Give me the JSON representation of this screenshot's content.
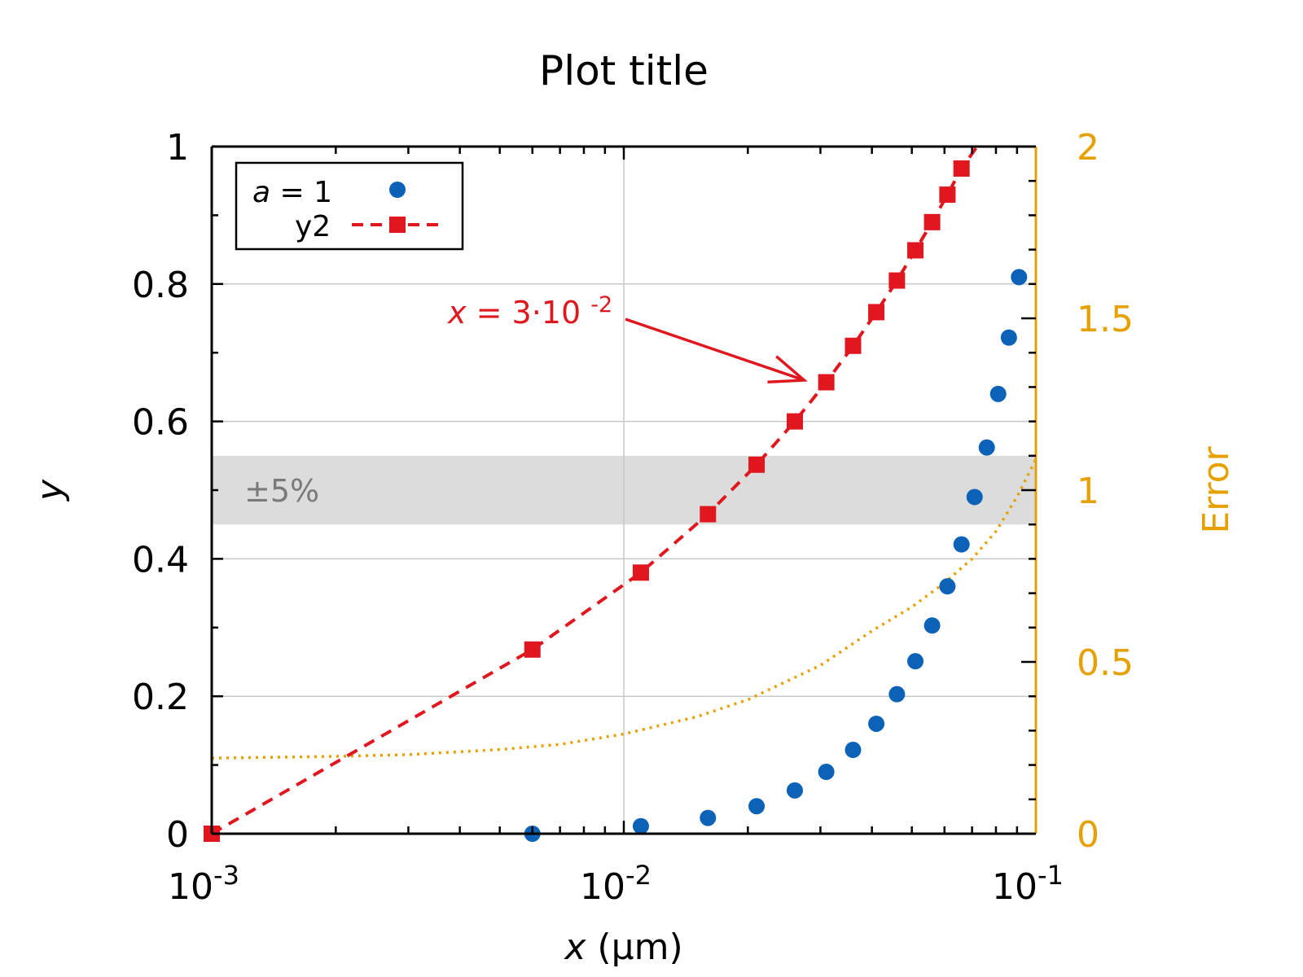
{
  "chart_data": {
    "type": "scatter",
    "title": "Plot title",
    "x_axis": {
      "label_var": "x",
      "label_unit": "(μm)",
      "scale": "log",
      "range": [
        0.001,
        0.1
      ],
      "ticks": [
        {
          "base": "10",
          "exp": "-3",
          "value": 0.001
        },
        {
          "base": "10",
          "exp": "-2",
          "value": 0.01
        },
        {
          "base": "10",
          "exp": "-1",
          "value": 0.1
        }
      ]
    },
    "y_axis": {
      "label": "y",
      "range": [
        0,
        1
      ],
      "ticks": [
        "0",
        "0.2",
        "0.4",
        "0.6",
        "0.8",
        "1"
      ]
    },
    "y2_axis": {
      "label": "Error",
      "range": [
        0,
        2
      ],
      "ticks": [
        "0",
        "0.5",
        "1",
        "1.5",
        "2"
      ]
    },
    "grid": true,
    "legend_position": "top-left",
    "band": {
      "label": "±5%",
      "y_range": [
        0.45,
        0.55
      ]
    },
    "annotation": {
      "var": "x",
      "text": " = 3·10",
      "exp": "-2",
      "x": 0.03,
      "y": 0.66
    },
    "series": [
      {
        "name_var": "a",
        "name": " = 1",
        "style": "markers",
        "x": [
          0.006,
          0.011,
          0.016,
          0.021,
          0.026,
          0.031,
          0.036,
          0.041,
          0.046,
          0.051,
          0.056,
          0.061,
          0.066,
          0.071,
          0.076,
          0.081,
          0.086,
          0.091
        ],
        "y": [
          0.0,
          0.011,
          0.023,
          0.04,
          0.063,
          0.09,
          0.122,
          0.16,
          0.203,
          0.251,
          0.303,
          0.36,
          0.421,
          0.49,
          0.562,
          0.64,
          0.722,
          0.81
        ]
      },
      {
        "name": "y2",
        "style": "dashed-line-with-markers",
        "x": [
          0.001,
          0.006,
          0.011,
          0.016,
          0.021,
          0.026,
          0.031,
          0.036,
          0.041,
          0.046,
          0.051,
          0.056,
          0.061,
          0.066
        ],
        "y": [
          0.0,
          0.268,
          0.38,
          0.465,
          0.537,
          0.6,
          0.657,
          0.71,
          0.759,
          0.805,
          0.849,
          0.89,
          0.93,
          0.968
        ]
      },
      {
        "name": "Error",
        "axis": "y2",
        "style": "dotted-line",
        "x": [
          0.001,
          0.002,
          0.003,
          0.005,
          0.007,
          0.01,
          0.015,
          0.02,
          0.03,
          0.04,
          0.05,
          0.06,
          0.07,
          0.08,
          0.09,
          0.1
        ],
        "y": [
          0.22,
          0.225,
          0.23,
          0.245,
          0.26,
          0.29,
          0.34,
          0.39,
          0.49,
          0.59,
          0.66,
          0.73,
          0.8,
          0.88,
          0.98,
          1.09
        ]
      }
    ]
  },
  "colors": {
    "series1": "#0b62b6",
    "series2": "#e0171f",
    "error": "#e6a100",
    "band": "#dcdcdc",
    "band_text": "#7a7a7a",
    "grid": "#c8c8c8"
  }
}
